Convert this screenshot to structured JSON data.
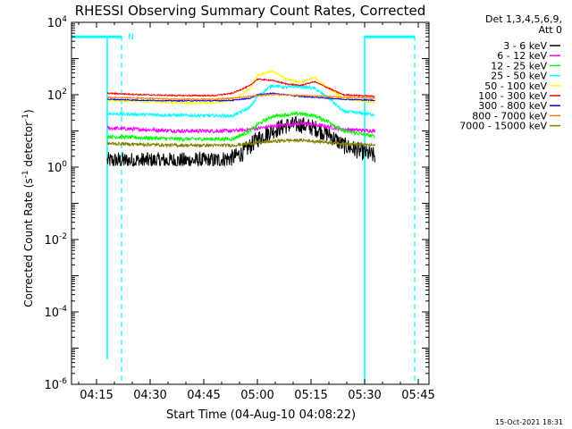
{
  "chart_data": {
    "type": "line",
    "title": "RHESSI Observing Summary Count Rates, Corrected",
    "xlabel": "Start Time (04-Aug-10 04:08:22)",
    "ylabel_prefix": "Corrected Count Rate (s",
    "ylabel_exp1": "-1",
    "ylabel_mid": " detector",
    "ylabel_exp2": "-1",
    "ylabel_suffix": ")",
    "y_scale": "log",
    "ylim": [
      1e-06,
      10000.0
    ],
    "xlim_minutes": [
      0,
      100
    ],
    "grid": false,
    "legend_position": "right",
    "legend_header": [
      "Det 1,3,4,5,6,9,",
      "Att 0"
    ],
    "x_ticks": [
      {
        "m": 7,
        "label": "04:15"
      },
      {
        "m": 22,
        "label": "04:30"
      },
      {
        "m": 37,
        "label": "04:45"
      },
      {
        "m": 52,
        "label": "05:00"
      },
      {
        "m": 67,
        "label": "05:15"
      },
      {
        "m": 82,
        "label": "05:30"
      },
      {
        "m": 97,
        "label": "05:45"
      }
    ],
    "y_ticks": [
      {
        "v": 1e-06,
        "base": "10",
        "exp": "-6"
      },
      {
        "v": 0.0001,
        "base": "10",
        "exp": "-4"
      },
      {
        "v": 0.01,
        "base": "10",
        "exp": "-2"
      },
      {
        "v": 1.0,
        "base": "10",
        "exp": "0"
      },
      {
        "v": 100.0,
        "base": "10",
        "exp": "2"
      },
      {
        "v": 10000.0,
        "base": "10",
        "exp": "4"
      }
    ],
    "series": [
      {
        "name": "3 - 6 keV",
        "color": "#000000",
        "x": [
          10,
          20,
          30,
          40,
          45,
          48,
          52,
          56,
          60,
          64,
          68,
          72,
          76,
          85
        ],
        "y": [
          1.5,
          1.5,
          1.5,
          1.5,
          1.8,
          2.5,
          6,
          10,
          14,
          15,
          12,
          8,
          4,
          2
        ]
      },
      {
        "name": "6 - 12 keV",
        "color": "#ff00ff",
        "x": [
          10,
          30,
          45,
          50,
          55,
          60,
          65,
          70,
          76,
          85
        ],
        "y": [
          12,
          10,
          10,
          11,
          13,
          15,
          16,
          14,
          11,
          10
        ]
      },
      {
        "name": "12 - 25 keV",
        "color": "#00ff00",
        "x": [
          10,
          30,
          45,
          50,
          52,
          56,
          60,
          64,
          68,
          72,
          76,
          85
        ],
        "y": [
          7,
          6,
          6,
          10,
          15,
          25,
          28,
          30,
          26,
          18,
          10,
          7
        ]
      },
      {
        "name": "25 - 50 keV",
        "color": "#00ffff",
        "x": [
          10,
          30,
          45,
          50,
          52,
          56,
          60,
          64,
          68,
          72,
          76,
          85
        ],
        "y": [
          30,
          27,
          26,
          45,
          90,
          180,
          160,
          170,
          150,
          80,
          35,
          28
        ]
      },
      {
        "name": "50 - 100 keV",
        "color": "#ffff00",
        "x": [
          10,
          20,
          30,
          40,
          45,
          50,
          52,
          56,
          60,
          64,
          68,
          72,
          76,
          85
        ],
        "y": [
          70,
          65,
          60,
          60,
          70,
          150,
          350,
          450,
          280,
          220,
          300,
          150,
          80,
          60
        ]
      },
      {
        "name": "100 - 300 keV",
        "color": "#ff0000",
        "x": [
          10,
          20,
          30,
          40,
          45,
          50,
          52,
          56,
          60,
          64,
          68,
          72,
          76,
          85
        ],
        "y": [
          110,
          100,
          95,
          95,
          110,
          180,
          270,
          250,
          200,
          180,
          230,
          150,
          100,
          90
        ]
      },
      {
        "name": "300 - 800 keV",
        "color": "#0000ff",
        "x": [
          10,
          20,
          30,
          40,
          45,
          50,
          52,
          56,
          60,
          64,
          68,
          72,
          76,
          85
        ],
        "y": [
          75,
          70,
          68,
          68,
          70,
          80,
          100,
          110,
          100,
          90,
          85,
          80,
          75,
          70
        ]
      },
      {
        "name": "800 - 7000 keV",
        "color": "#ff8000",
        "x": [
          10,
          20,
          30,
          40,
          45,
          50,
          55,
          60,
          65,
          70,
          76,
          85
        ],
        "y": [
          85,
          80,
          75,
          75,
          80,
          90,
          100,
          100,
          95,
          90,
          85,
          80
        ]
      },
      {
        "name": "7000 - 15000 keV",
        "color": "#808000",
        "x": [
          10,
          30,
          45,
          50,
          55,
          60,
          65,
          70,
          76,
          85
        ],
        "y": [
          4.5,
          4,
          4,
          4.5,
          5,
          5.5,
          5.5,
          5,
          4.5,
          4
        ]
      }
    ],
    "markers": {
      "flag_label": "N",
      "solid_lines_minutes": [
        10,
        82
      ],
      "dashed_lines_minutes": [
        14,
        96
      ],
      "bar_segments": [
        [
          0,
          14
        ],
        [
          82,
          96
        ]
      ]
    },
    "footer_timestamp": "15-Oct-2021 18:31"
  }
}
